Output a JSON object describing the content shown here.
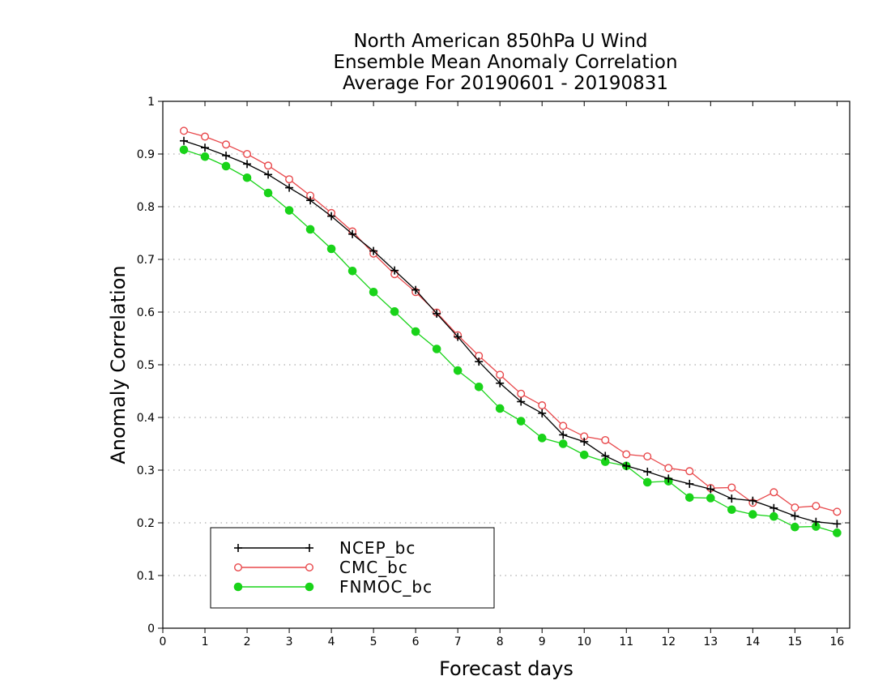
{
  "chart_data": {
    "type": "line",
    "title": [
      "North American 850hPa U Wind",
      "Ensemble Mean Anomaly Correlation",
      "Average For 20190601 - 20190831"
    ],
    "xlabel": "Forecast days",
    "ylabel": "Anomaly Correlation",
    "xlim": [
      0,
      16.3
    ],
    "ylim": [
      0,
      1
    ],
    "x_ticks": [
      "0",
      "1",
      "2",
      "3",
      "4",
      "5",
      "6",
      "7",
      "8",
      "9",
      "10",
      "11",
      "12",
      "13",
      "14",
      "15",
      "16"
    ],
    "y_ticks": [
      "0",
      "0.1",
      "0.2",
      "0.3",
      "0.4",
      "0.5",
      "0.6",
      "0.7",
      "0.8",
      "0.9",
      "1"
    ],
    "grid": true,
    "legend_position": "bottom-left",
    "x": [
      0.5,
      1,
      1.5,
      2,
      2.5,
      3,
      3.5,
      4,
      4.5,
      5,
      5.5,
      6,
      6.5,
      7,
      7.5,
      8,
      8.5,
      9,
      9.5,
      10,
      10.5,
      11,
      11.5,
      12,
      12.5,
      13,
      13.5,
      14,
      14.5,
      15,
      15.5,
      16
    ],
    "series": [
      {
        "name": "NCEP_bc",
        "color": "#000000",
        "marker": "plus",
        "values": [
          0.925,
          0.912,
          0.897,
          0.881,
          0.861,
          0.836,
          0.812,
          0.782,
          0.748,
          0.716,
          0.679,
          0.642,
          0.597,
          0.553,
          0.506,
          0.465,
          0.43,
          0.408,
          0.367,
          0.354,
          0.327,
          0.308,
          0.297,
          0.284,
          0.274,
          0.264,
          0.246,
          0.242,
          0.228,
          0.213,
          0.202,
          0.198
        ]
      },
      {
        "name": "CMC_bc",
        "color": "#e8484b",
        "marker": "open-circle",
        "values": [
          0.944,
          0.933,
          0.918,
          0.9,
          0.878,
          0.852,
          0.821,
          0.788,
          0.753,
          0.711,
          0.672,
          0.638,
          0.599,
          0.556,
          0.517,
          0.481,
          0.445,
          0.423,
          0.384,
          0.364,
          0.357,
          0.33,
          0.326,
          0.304,
          0.298,
          0.266,
          0.267,
          0.238,
          0.258,
          0.229,
          0.232,
          0.221
        ]
      },
      {
        "name": "FNMOC_bc",
        "color": "#19d319",
        "marker": "filled-circle",
        "values": [
          0.908,
          0.895,
          0.877,
          0.855,
          0.826,
          0.793,
          0.757,
          0.72,
          0.678,
          0.638,
          0.601,
          0.563,
          0.53,
          0.489,
          0.458,
          0.417,
          0.393,
          0.361,
          0.35,
          0.329,
          0.316,
          0.308,
          0.277,
          0.279,
          0.248,
          0.247,
          0.225,
          0.216,
          0.212,
          0.192,
          0.193,
          0.181
        ]
      }
    ]
  }
}
